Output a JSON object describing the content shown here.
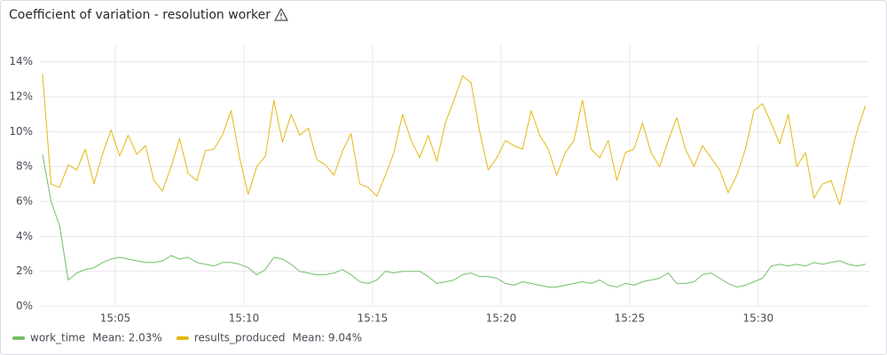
{
  "chart_data": {
    "type": "line",
    "title": "Coefficient of variation - resolution worker",
    "x": [
      "15:02:10",
      "15:02:30",
      "15:02:50",
      "15:03:10",
      "15:03:30",
      "15:03:50",
      "15:04:10",
      "15:04:30",
      "15:04:50",
      "15:05:10",
      "15:05:30",
      "15:05:50",
      "15:06:10",
      "15:06:30",
      "15:06:50",
      "15:07:10",
      "15:07:30",
      "15:07:50",
      "15:08:10",
      "15:08:30",
      "15:08:50",
      "15:09:10",
      "15:09:30",
      "15:09:50",
      "15:10:10",
      "15:10:30",
      "15:10:50",
      "15:11:10",
      "15:11:30",
      "15:11:50",
      "15:12:10",
      "15:12:30",
      "15:12:50",
      "15:13:10",
      "15:13:30",
      "15:13:50",
      "15:14:10",
      "15:14:30",
      "15:14:50",
      "15:15:10",
      "15:15:30",
      "15:15:50",
      "15:16:10",
      "15:16:30",
      "15:16:50",
      "15:17:10",
      "15:17:30",
      "15:17:50",
      "15:18:10",
      "15:18:30",
      "15:18:50",
      "15:19:10",
      "15:19:30",
      "15:19:50",
      "15:20:10",
      "15:20:30",
      "15:20:50",
      "15:21:10",
      "15:21:30",
      "15:21:50",
      "15:22:10",
      "15:22:30",
      "15:22:50",
      "15:23:10",
      "15:23:30",
      "15:23:50",
      "15:24:10",
      "15:24:30",
      "15:24:50",
      "15:25:10",
      "15:25:30",
      "15:25:50",
      "15:26:10",
      "15:26:30",
      "15:26:50",
      "15:27:10",
      "15:27:30",
      "15:27:50",
      "15:28:10",
      "15:28:30",
      "15:28:50",
      "15:29:10",
      "15:29:30",
      "15:29:50",
      "15:30:10",
      "15:30:30",
      "15:30:50",
      "15:31:10",
      "15:31:30",
      "15:31:50",
      "15:32:10",
      "15:32:30",
      "15:32:50",
      "15:33:10",
      "15:33:30",
      "15:33:50",
      "15:34:10"
    ],
    "series": [
      {
        "name": "work_time",
        "legend_stat": "Mean: 2.03%",
        "color": "#73bf69",
        "values": [
          8.7,
          6.0,
          4.6,
          1.5,
          1.9,
          2.1,
          2.2,
          2.5,
          2.7,
          2.8,
          2.7,
          2.6,
          2.5,
          2.5,
          2.6,
          2.9,
          2.7,
          2.8,
          2.5,
          2.4,
          2.3,
          2.5,
          2.5,
          2.4,
          2.2,
          1.8,
          2.1,
          2.8,
          2.7,
          2.4,
          2.0,
          1.9,
          1.8,
          1.8,
          1.9,
          2.1,
          1.8,
          1.4,
          1.3,
          1.5,
          2.0,
          1.9,
          2.0,
          2.0,
          2.0,
          1.7,
          1.3,
          1.4,
          1.5,
          1.8,
          1.9,
          1.7,
          1.7,
          1.6,
          1.3,
          1.2,
          1.4,
          1.3,
          1.2,
          1.1,
          1.1,
          1.2,
          1.3,
          1.4,
          1.3,
          1.5,
          1.2,
          1.1,
          1.3,
          1.2,
          1.4,
          1.5,
          1.6,
          1.9,
          1.3,
          1.3,
          1.4,
          1.8,
          1.9,
          1.6,
          1.3,
          1.1,
          1.2,
          1.4,
          1.6,
          2.3,
          2.4,
          2.3,
          2.4,
          2.3,
          2.5,
          2.4,
          2.5,
          2.6,
          2.4,
          2.3,
          2.4
        ]
      },
      {
        "name": "results_produced",
        "legend_stat": "Mean: 9.04%",
        "color": "#e5b812",
        "values": [
          13.3,
          7.0,
          6.8,
          8.1,
          7.8,
          9.0,
          7.0,
          8.7,
          10.1,
          8.6,
          9.8,
          8.7,
          9.2,
          7.2,
          6.6,
          8.0,
          9.6,
          7.6,
          7.2,
          8.9,
          9.0,
          9.8,
          11.2,
          8.5,
          6.4,
          8.0,
          8.6,
          11.8,
          9.4,
          11.0,
          9.8,
          10.2,
          8.4,
          8.1,
          7.5,
          8.9,
          9.9,
          7.0,
          6.8,
          6.3,
          7.5,
          8.8,
          11.0,
          9.5,
          8.5,
          9.8,
          8.3,
          10.5,
          11.8,
          13.2,
          12.8,
          10.0,
          7.8,
          8.5,
          9.5,
          9.2,
          9.0,
          11.2,
          9.8,
          9.0,
          7.5,
          8.8,
          9.5,
          11.8,
          9.0,
          8.5,
          9.5,
          7.2,
          8.8,
          9.0,
          10.5,
          8.8,
          8.0,
          9.5,
          10.8,
          9.0,
          8.0,
          9.2,
          8.5,
          7.8,
          6.5,
          7.5,
          9.0,
          11.2,
          11.6,
          10.5,
          9.3,
          11.0,
          8.0,
          8.8,
          6.2,
          7.0,
          7.2,
          5.8,
          8.0,
          10.0,
          11.5
        ]
      }
    ],
    "xlim": [
      "15:02:04",
      "15:34:19"
    ],
    "xticks": [
      {
        "value": "15:05:00",
        "label": "15:05"
      },
      {
        "value": "15:10:00",
        "label": "15:10"
      },
      {
        "value": "15:15:00",
        "label": "15:15"
      },
      {
        "value": "15:20:00",
        "label": "15:20"
      },
      {
        "value": "15:25:00",
        "label": "15:25"
      },
      {
        "value": "15:30:00",
        "label": "15:30"
      }
    ],
    "ylim": [
      0,
      15
    ],
    "yticks": [
      {
        "value": 0,
        "label": "0%"
      },
      {
        "value": 2,
        "label": "2%"
      },
      {
        "value": 4,
        "label": "4%"
      },
      {
        "value": 6,
        "label": "6%"
      },
      {
        "value": 8,
        "label": "8%"
      },
      {
        "value": 10,
        "label": "10%"
      },
      {
        "value": 12,
        "label": "12%"
      },
      {
        "value": 14,
        "label": "14%"
      }
    ],
    "grid": true
  }
}
